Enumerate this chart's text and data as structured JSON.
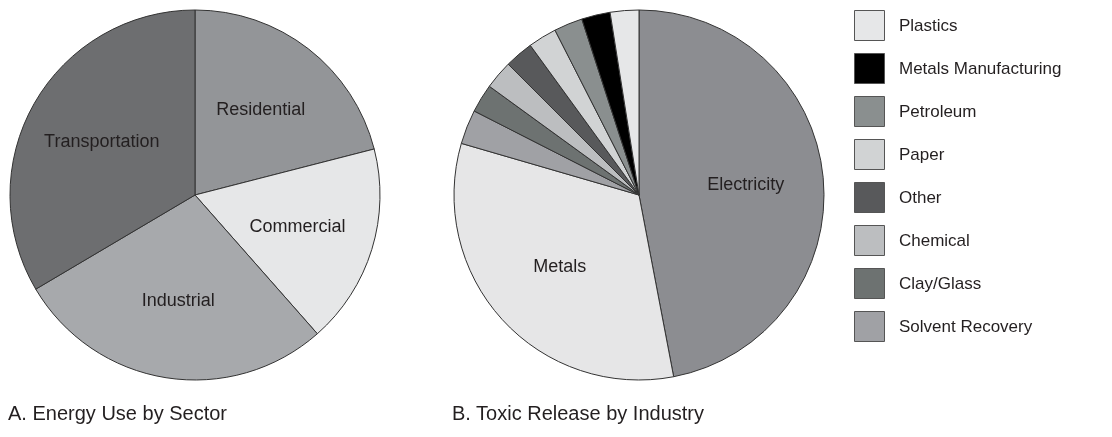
{
  "chart_data": [
    {
      "type": "pie",
      "title": "A. Energy Use by Sector",
      "categories": [
        "Residential",
        "Commercial",
        "Industrial",
        "Transportation"
      ],
      "values": [
        21,
        17.5,
        28,
        33.5
      ],
      "colors": [
        "#939598",
        "#e6e7e8",
        "#a7a9ac",
        "#6d6e70"
      ],
      "legend": false
    },
    {
      "type": "pie",
      "title": "B. Toxic Release by Industry",
      "categories": [
        "Electricity",
        "Metals",
        "Solvent Recovery",
        "Clay/Glass",
        "Chemical",
        "Other",
        "Paper",
        "Petroleum",
        "Metals Manufacturing",
        "Plastics"
      ],
      "values": [
        47,
        32.5,
        3,
        2.5,
        2.5,
        2.5,
        2.5,
        2.5,
        2.5,
        2.5
      ],
      "colors": [
        "#8c8d91",
        "#e6e6e7",
        "#a0a1a5",
        "#6d7271",
        "#bcbec0",
        "#58595b",
        "#d1d3d4",
        "#8a8f8f",
        "#000000",
        "#e6e7e8"
      ],
      "legend": "right"
    }
  ]
}
